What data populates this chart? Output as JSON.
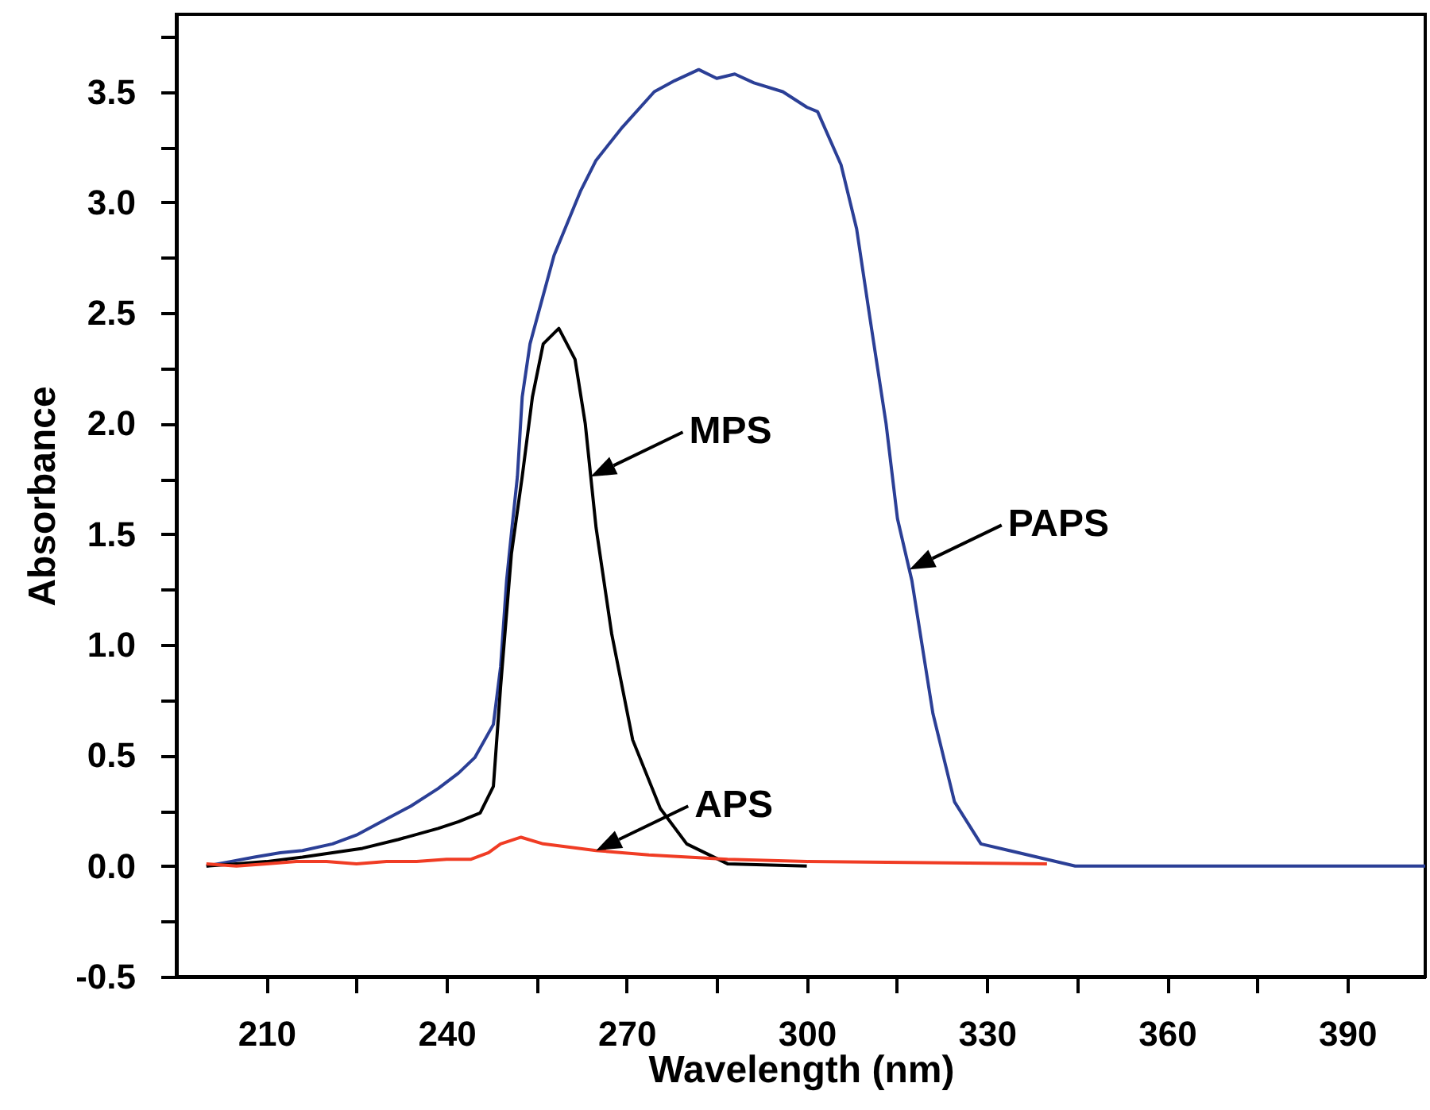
{
  "chart_data": {
    "type": "line",
    "xlabel": "Wavelength (nm)",
    "ylabel": "Absorbance",
    "xlim": [
      195,
      403
    ],
    "ylim": [
      -0.5,
      3.85
    ],
    "xticks": [
      210,
      {
        "value": 225,
        "label": null
      },
      240,
      {
        "value": 255,
        "label": null
      },
      270,
      {
        "value": 285,
        "label": null
      },
      300,
      {
        "value": 315,
        "label": null
      },
      330,
      {
        "value": 345,
        "label": null
      },
      360,
      {
        "value": 375,
        "label": null
      },
      390
    ],
    "yticks": [
      -0.5,
      {
        "value": -0.25,
        "label": null
      },
      "0.0",
      {
        "value": 0.25,
        "label": null
      },
      0.5,
      {
        "value": 0.75,
        "label": null
      },
      "1.0",
      {
        "value": 1.25,
        "label": null
      },
      1.5,
      {
        "value": 1.75,
        "label": null
      },
      "2.0",
      {
        "value": 2.25,
        "label": null
      },
      2.5,
      {
        "value": 2.75,
        "label": null
      },
      "3.0",
      {
        "value": 3.25,
        "label": null
      },
      3.5,
      {
        "value": 3.75,
        "label": null
      }
    ],
    "grid": false,
    "marker": "none",
    "line_style": "solid",
    "series": [
      {
        "color": "#2b3f96",
        "x": [
          200,
          204,
          208,
          212.3,
          216,
          221,
          225,
          229.8,
          234,
          238.6,
          242,
          244.7,
          247.8,
          249,
          250,
          250.9,
          251.8,
          252.6,
          253.9,
          257.9,
          262.3,
          264.9,
          269.3,
          274.6,
          278,
          282,
          285,
          288,
          291.2,
          296,
          300,
          301.8,
          305.7,
          308.3,
          310.5,
          313.2,
          315.1,
          317.5,
          321,
          324.6,
          329,
          344.7,
          360,
          380,
          403
        ],
        "values": [
          0,
          0.02,
          0.04,
          0.06,
          0.07,
          0.1,
          0.14,
          0.21,
          0.27,
          0.35,
          0.42,
          0.49,
          0.64,
          0.9,
          1.29,
          1.53,
          1.76,
          2.12,
          2.36,
          2.76,
          3.05,
          3.19,
          3.34,
          3.5,
          3.55,
          3.6,
          3.56,
          3.58,
          3.54,
          3.5,
          3.43,
          3.41,
          3.17,
          2.88,
          2.48,
          2,
          1.57,
          1.29,
          0.69,
          0.29,
          0.1,
          0,
          0,
          0,
          0
        ]
      },
      {
        "color": "#000000",
        "x": [
          200,
          205,
          210,
          216,
          221,
          226,
          232,
          238.6,
          242,
          245.6,
          247.8,
          249,
          250.8,
          252.6,
          254.3,
          256.1,
          258.7,
          261.4,
          263.1,
          264.9,
          267.5,
          271,
          275.6,
          280,
          286.8,
          300
        ],
        "values": [
          0,
          0.01,
          0.02,
          0.04,
          0.06,
          0.08,
          0.12,
          0.17,
          0.2,
          0.24,
          0.36,
          0.81,
          1.41,
          1.76,
          2.12,
          2.36,
          2.43,
          2.29,
          2,
          1.53,
          1.05,
          0.57,
          0.26,
          0.1,
          0.01,
          0
        ]
      },
      {
        "color": "#f03c24",
        "x": [
          200,
          205,
          210,
          215,
          220,
          225,
          230,
          235,
          240,
          244,
          247,
          249,
          252.4,
          256.1,
          264.9,
          273.7,
          286.8,
          300,
          320,
          340
        ],
        "values": [
          0.01,
          0,
          0.01,
          0.02,
          0.02,
          0.01,
          0.02,
          0.02,
          0.03,
          0.03,
          0.06,
          0.1,
          0.13,
          0.1,
          0.07,
          0.05,
          0.03,
          0.02,
          0.015,
          0.01
        ]
      }
    ],
    "annotations": [
      {
        "text": "MPS",
        "x": 264,
        "y": 1.76
      },
      {
        "text": "PAPS",
        "x": 317.1,
        "y": 1.34
      },
      {
        "text": "APS",
        "x": 264.9,
        "y": 0.07
      }
    ]
  }
}
